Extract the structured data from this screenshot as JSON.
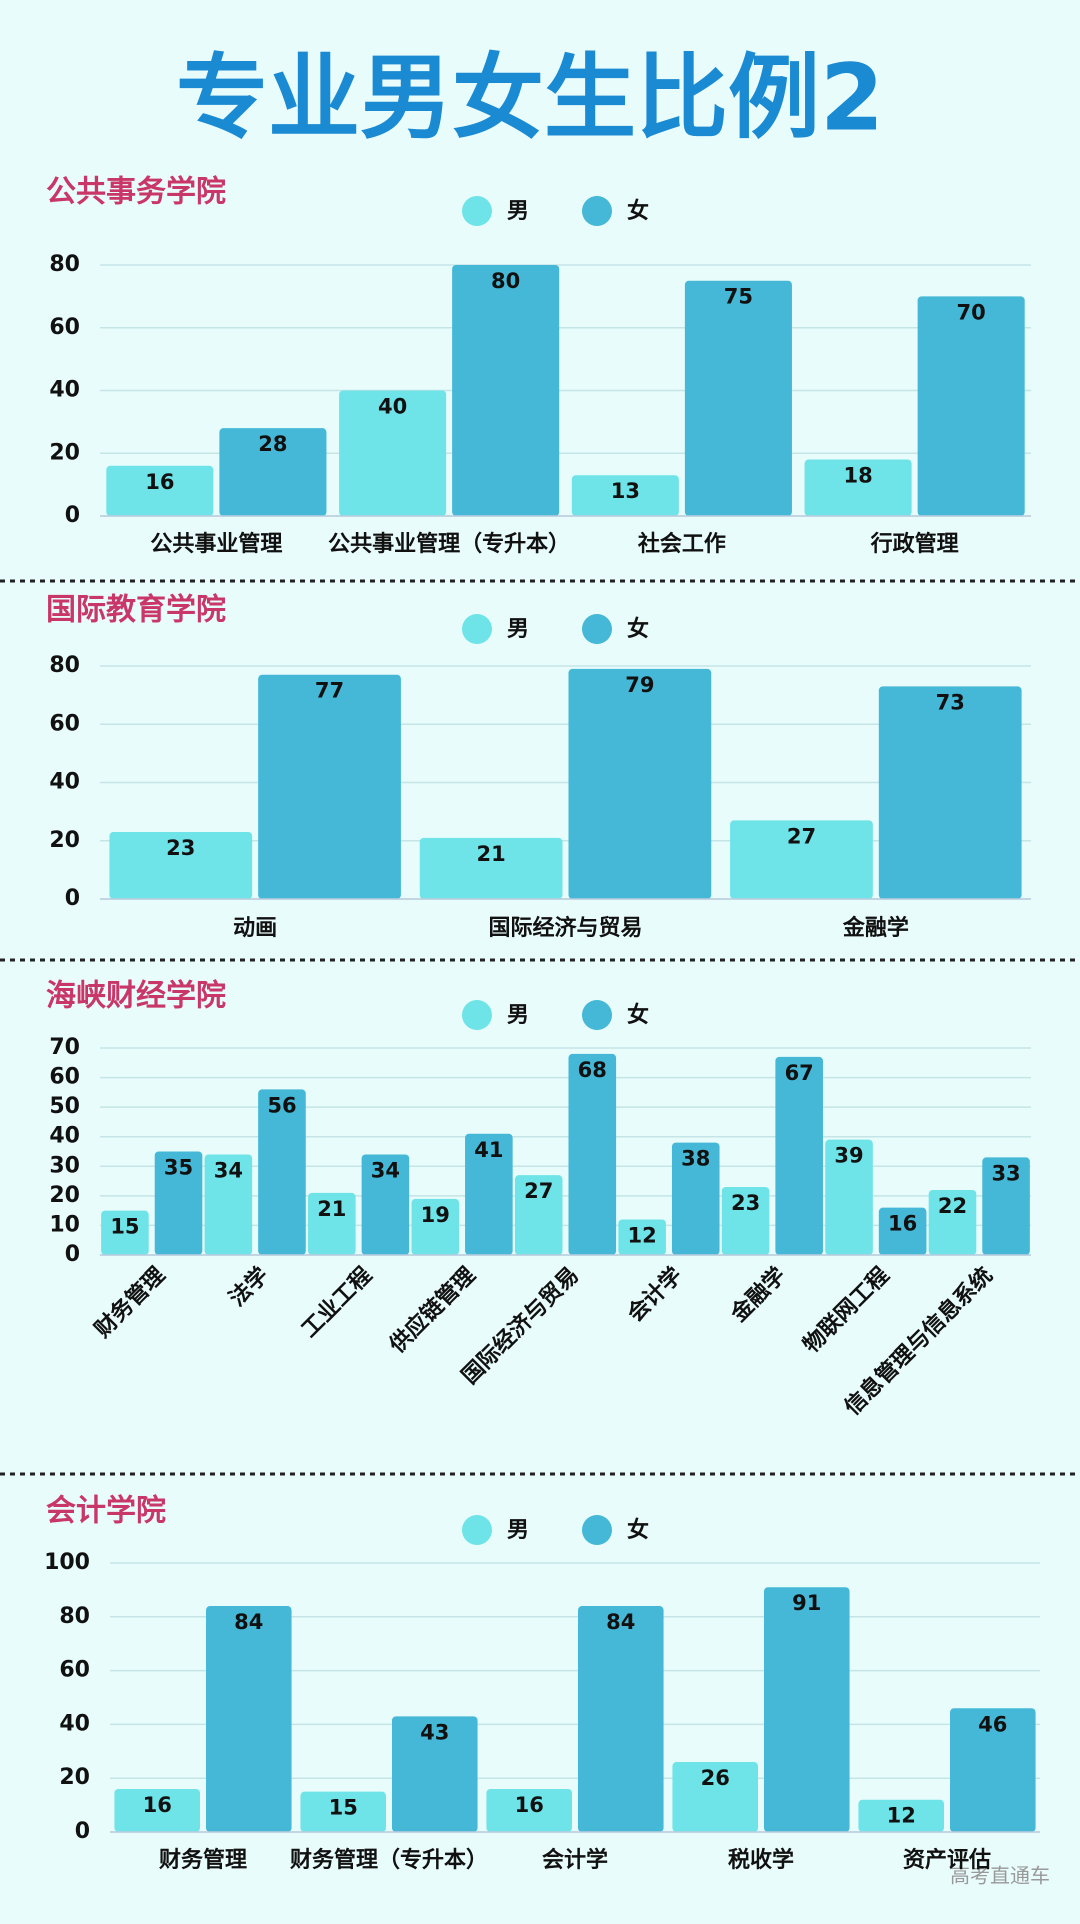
{
  "title": "专业男女生比例2",
  "watermark": "高考直通车",
  "chart_data": [
    {
      "type": "bar",
      "title": "公共事务学院",
      "categories": [
        "公共事业管理",
        "公共事业管理（专升本）",
        "社会工作",
        "行政管理"
      ],
      "series": [
        {
          "name": "男",
          "color": "#6ee4e8",
          "values": [
            16,
            40,
            13,
            18
          ]
        },
        {
          "name": "女",
          "color": "#44b8d6",
          "values": [
            28,
            80,
            75,
            70
          ]
        }
      ],
      "ylim": [
        0,
        80
      ],
      "yticks": [
        0,
        20,
        40,
        60,
        80
      ],
      "grid": true
    },
    {
      "type": "bar",
      "title": "国际教育学院",
      "categories": [
        "动画",
        "国际经济与贸易",
        "金融学"
      ],
      "series": [
        {
          "name": "男",
          "color": "#6ee4e8",
          "values": [
            23,
            21,
            27
          ]
        },
        {
          "name": "女",
          "color": "#44b8d6",
          "values": [
            77,
            79,
            73
          ]
        }
      ],
      "ylim": [
        0,
        80
      ],
      "yticks": [
        0,
        20,
        40,
        60,
        80
      ],
      "grid": true
    },
    {
      "type": "bar",
      "title": "海峡财经学院",
      "categories": [
        "财务管理",
        "法学",
        "工业工程",
        "供应链管理",
        "国际经济与贸易",
        "会计学",
        "金融学",
        "物联网工程",
        "信息管理与信息系统"
      ],
      "series": [
        {
          "name": "男",
          "color": "#6ee4e8",
          "values": [
            15,
            34,
            21,
            19,
            27,
            12,
            23,
            39,
            22
          ]
        },
        {
          "name": "女",
          "color": "#44b8d6",
          "values": [
            35,
            56,
            34,
            41,
            68,
            38,
            67,
            16,
            33
          ]
        }
      ],
      "ylim": [
        0,
        70
      ],
      "yticks": [
        0,
        10,
        20,
        30,
        40,
        50,
        60,
        70
      ],
      "grid": true
    },
    {
      "type": "bar",
      "title": "会计学院",
      "categories": [
        "财务管理",
        "财务管理（专升本）",
        "会计学",
        "税收学",
        "资产评估"
      ],
      "series": [
        {
          "name": "男",
          "color": "#6ee4e8",
          "values": [
            16,
            15,
            16,
            26,
            12
          ]
        },
        {
          "name": "女",
          "color": "#44b8d6",
          "values": [
            84,
            43,
            84,
            91,
            46
          ]
        }
      ],
      "ylim": [
        0,
        100
      ],
      "yticks": [
        0,
        20,
        40,
        60,
        80,
        100
      ],
      "grid": true
    }
  ]
}
